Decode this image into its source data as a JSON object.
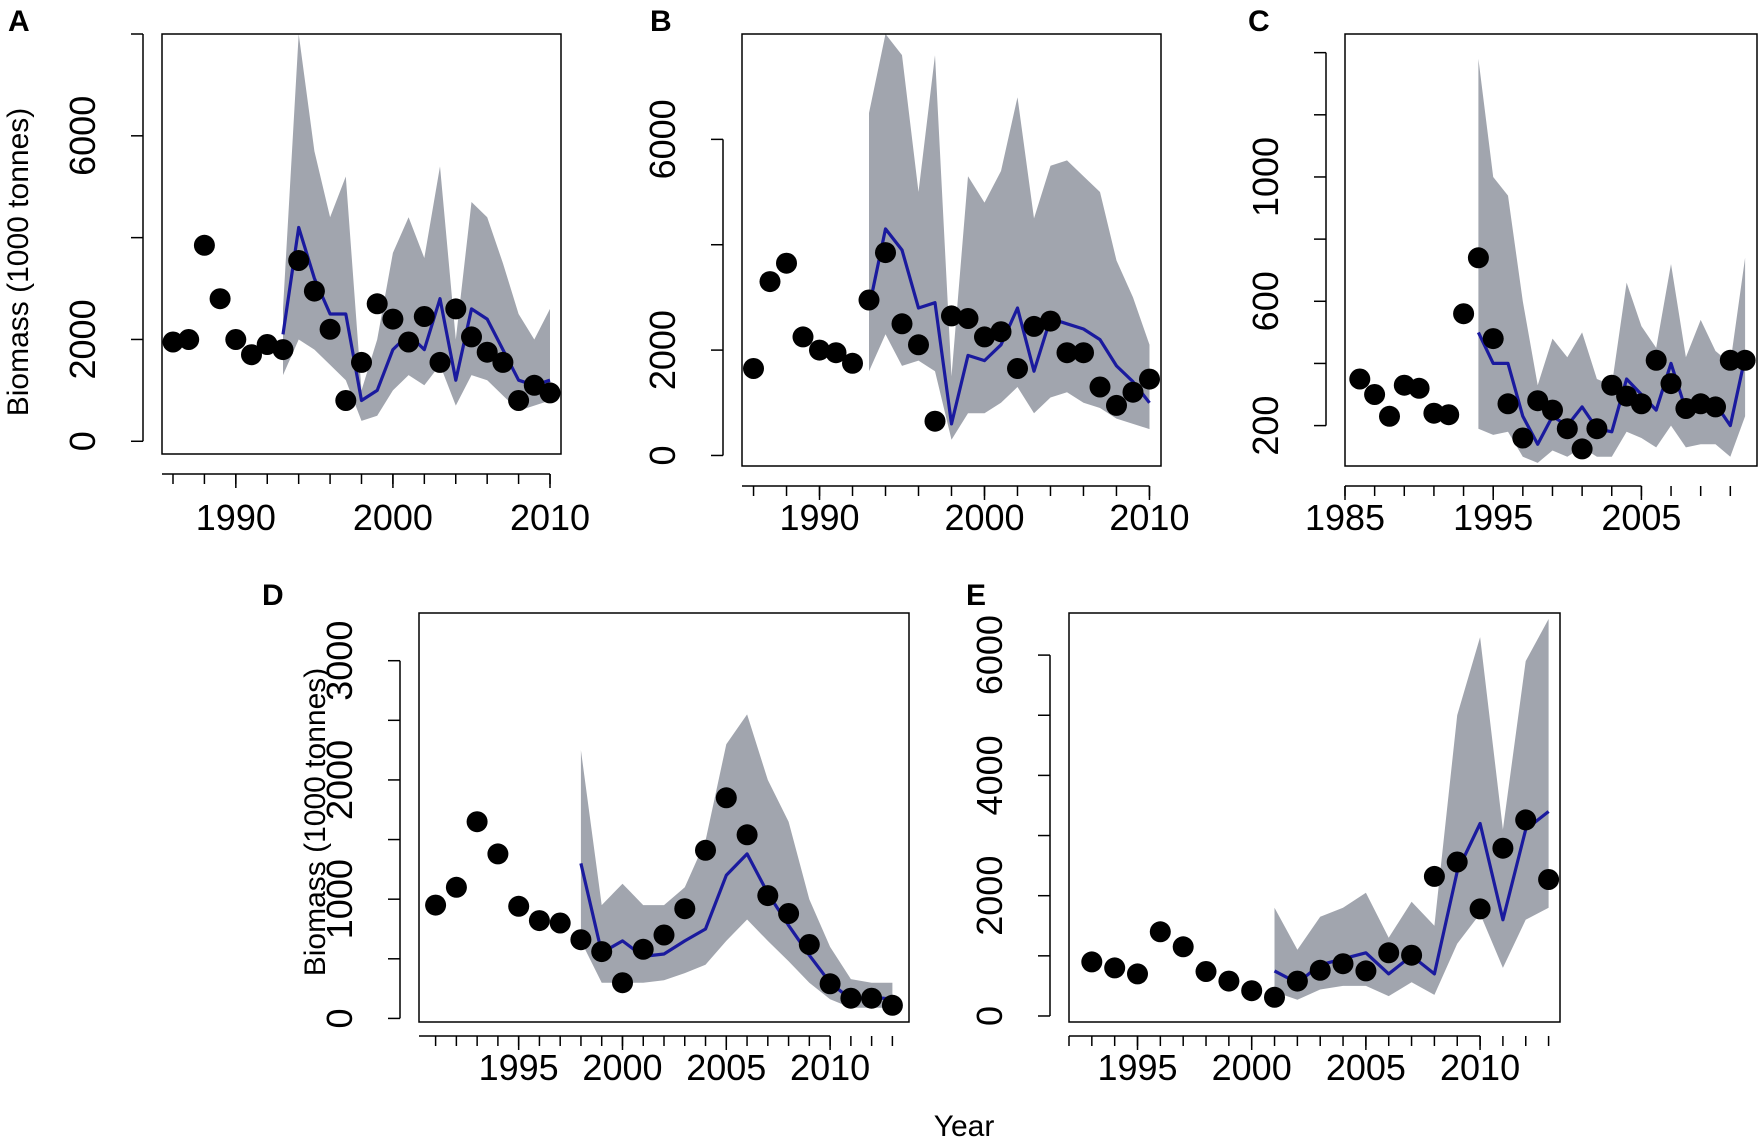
{
  "figure": {
    "xlabel": "Year",
    "colors": {
      "band": "#a1a5ae",
      "line": "#1a1a9e",
      "points": "#000000"
    }
  },
  "chart_data": [
    {
      "panel": "A",
      "type": "line",
      "ylabel": "Biomass (1000 tonnes)",
      "xlim": [
        1985.3,
        2010.7
      ],
      "ylim": [
        -250,
        8000
      ],
      "xticks": [
        1990,
        2000,
        2010
      ],
      "yticks": [
        0,
        2000,
        6000
      ],
      "ytick_minor": [
        0,
        2000,
        4000,
        6000,
        8000
      ],
      "observed": {
        "x": [
          1986,
          1987,
          1988,
          1989,
          1990,
          1991,
          1992,
          1993,
          1994,
          1995,
          1996,
          1997,
          1998,
          1999,
          2000,
          2001,
          2002,
          2003,
          2004,
          2005,
          2006,
          2007,
          2008,
          2009,
          2010
        ],
        "y": [
          1950,
          2000,
          3850,
          2800,
          2000,
          1700,
          1900,
          1800,
          3550,
          2950,
          2200,
          800,
          1550,
          2700,
          2400,
          1950,
          2450,
          1550,
          2600,
          2050,
          1750,
          1550,
          800,
          1100,
          950
        ]
      },
      "fit": {
        "x": [
          1993,
          1994,
          1995,
          1996,
          1997,
          1998,
          1999,
          2000,
          2001,
          2002,
          2003,
          2004,
          2005,
          2006,
          2007,
          2008,
          2009,
          2010
        ],
        "y": [
          2100,
          4200,
          3200,
          2500,
          2500,
          800,
          1000,
          1800,
          2100,
          1800,
          2800,
          1200,
          2600,
          2400,
          1800,
          1200,
          1100,
          1200
        ]
      },
      "band": {
        "x": [
          1993,
          1994,
          1995,
          1996,
          1997,
          1998,
          1999,
          2000,
          2001,
          2002,
          2003,
          2004,
          2005,
          2006,
          2007,
          2008,
          2009,
          2010
        ],
        "lower": [
          1300,
          2000,
          1800,
          1500,
          1200,
          400,
          500,
          1000,
          1300,
          1100,
          1500,
          700,
          1300,
          1200,
          900,
          600,
          700,
          800
        ],
        "upper": [
          2600,
          8000,
          5700,
          4400,
          5200,
          1000,
          2000,
          3700,
          4400,
          3600,
          5400,
          2000,
          4700,
          4400,
          3500,
          2500,
          2000,
          2600
        ]
      }
    },
    {
      "panel": "B",
      "type": "line",
      "ylabel": "",
      "xlim": [
        1985.3,
        2010.7
      ],
      "ylim": [
        -200,
        8000
      ],
      "xticks": [
        1990,
        2000,
        2010
      ],
      "yticks": [
        0,
        2000,
        6000
      ],
      "ytick_minor": [
        0,
        2000,
        4000,
        6000
      ],
      "observed": {
        "x": [
          1986,
          1987,
          1988,
          1989,
          1990,
          1991,
          1992,
          1993,
          1994,
          1995,
          1996,
          1997,
          1998,
          1999,
          2000,
          2001,
          2002,
          2003,
          2004,
          2005,
          2006,
          2007,
          2008,
          2009,
          2010
        ],
        "y": [
          1650,
          3300,
          3650,
          2250,
          2000,
          1950,
          1750,
          2950,
          3850,
          2500,
          2100,
          650,
          2650,
          2600,
          2250,
          2350,
          1650,
          2450,
          2550,
          1950,
          1950,
          1300,
          950,
          1200,
          1450
        ]
      },
      "fit": {
        "x": [
          1993,
          1994,
          1995,
          1996,
          1997,
          1998,
          1999,
          2000,
          2001,
          2002,
          2003,
          2004,
          2005,
          2006,
          2007,
          2008,
          2009,
          2010
        ],
        "y": [
          2800,
          4300,
          3900,
          2800,
          2900,
          600,
          1900,
          1800,
          2100,
          2800,
          1600,
          2600,
          2500,
          2400,
          2200,
          1700,
          1400,
          1000
        ]
      },
      "band": {
        "x": [
          1993,
          1994,
          1995,
          1996,
          1997,
          1998,
          1999,
          2000,
          2001,
          2002,
          2003,
          2004,
          2005,
          2006,
          2007,
          2008,
          2009,
          2010
        ],
        "lower": [
          1600,
          2300,
          1700,
          1800,
          1600,
          300,
          800,
          800,
          1000,
          1300,
          800,
          1100,
          1200,
          1000,
          900,
          700,
          600,
          500
        ],
        "upper": [
          6500,
          8000,
          7600,
          5000,
          7600,
          1500,
          5300,
          4800,
          5400,
          6800,
          4500,
          5500,
          5600,
          5300,
          5000,
          3700,
          3000,
          2100
        ]
      }
    },
    {
      "panel": "C",
      "type": "line",
      "ylabel": "",
      "xlim": [
        1985,
        2012.8
      ],
      "ylim": [
        70,
        1460
      ],
      "xticks": [
        1985,
        1995,
        2005
      ],
      "yticks": [
        200,
        600,
        1000
      ],
      "ytick_minor": [
        200,
        400,
        600,
        800,
        1000,
        1200,
        1400
      ],
      "observed": {
        "x": [
          1986,
          1987,
          1988,
          1989,
          1990,
          1991,
          1992,
          1993,
          1994,
          1995,
          1996,
          1997,
          1998,
          1999,
          2000,
          2001,
          2002,
          2003,
          2004,
          2005,
          2006,
          2007,
          2008,
          2009,
          2010,
          2011,
          2012
        ],
        "y": [
          350,
          300,
          230,
          330,
          320,
          240,
          235,
          560,
          740,
          480,
          270,
          160,
          280,
          250,
          190,
          125,
          190,
          330,
          295,
          270,
          410,
          335,
          255,
          270,
          260,
          410,
          410
        ]
      },
      "fit": {
        "x": [
          1994,
          1995,
          1996,
          1997,
          1998,
          1999,
          2000,
          2001,
          2002,
          2003,
          2004,
          2005,
          2006,
          2007,
          2008,
          2009,
          2010,
          2011,
          2012
        ],
        "y": [
          500,
          400,
          400,
          230,
          140,
          230,
          200,
          260,
          190,
          180,
          350,
          300,
          250,
          400,
          250,
          270,
          270,
          200,
          420
        ]
      },
      "band": {
        "x": [
          1994,
          1995,
          1996,
          1997,
          1998,
          1999,
          2000,
          2001,
          2002,
          2003,
          2004,
          2005,
          2006,
          2007,
          2008,
          2009,
          2010,
          2011,
          2012
        ],
        "lower": [
          190,
          170,
          180,
          100,
          80,
          120,
          100,
          130,
          100,
          100,
          180,
          160,
          130,
          200,
          130,
          140,
          140,
          100,
          230
        ],
        "upper": [
          1380,
          1000,
          940,
          600,
          330,
          480,
          420,
          500,
          350,
          330,
          660,
          520,
          450,
          720,
          420,
          540,
          440,
          400,
          740
        ]
      }
    },
    {
      "panel": "D",
      "type": "line",
      "ylabel": "Biomass (1000 tonnes)",
      "xlim": [
        1990.2,
        2013.8
      ],
      "ylim": [
        -30,
        3400
      ],
      "xticks": [
        1995,
        2000,
        2005,
        2010
      ],
      "yticks": [
        0,
        1000,
        2000,
        3000
      ],
      "ytick_minor": [
        0,
        500,
        1000,
        1500,
        2000,
        2500,
        3000
      ],
      "observed": {
        "x": [
          1991,
          1992,
          1993,
          1994,
          1995,
          1996,
          1997,
          1998,
          1999,
          2000,
          2001,
          2002,
          2003,
          2004,
          2005,
          2006,
          2007,
          2008,
          2009,
          2010,
          2011,
          2012,
          2013
        ],
        "y": [
          950,
          1100,
          1650,
          1380,
          940,
          820,
          800,
          660,
          560,
          300,
          580,
          700,
          920,
          1410,
          1850,
          1540,
          1030,
          880,
          620,
          290,
          170,
          170,
          110
        ]
      },
      "fit": {
        "x": [
          1998,
          1999,
          2000,
          2001,
          2002,
          2003,
          2004,
          2005,
          2006,
          2007,
          2008,
          2009,
          2010,
          2011,
          2012,
          2013
        ],
        "y": [
          1300,
          550,
          650,
          520,
          540,
          650,
          750,
          1200,
          1380,
          1050,
          780,
          530,
          300,
          160,
          180,
          160
        ]
      },
      "band": {
        "x": [
          1998,
          1999,
          2000,
          2001,
          2002,
          2003,
          2004,
          2005,
          2006,
          2007,
          2008,
          2009,
          2010,
          2011,
          2012,
          2013
        ],
        "lower": [
          650,
          300,
          300,
          300,
          320,
          380,
          450,
          650,
          830,
          650,
          480,
          300,
          160,
          90,
          90,
          90
        ],
        "upper": [
          2250,
          950,
          1130,
          950,
          950,
          1100,
          1490,
          2300,
          2550,
          2000,
          1650,
          1000,
          600,
          330,
          300,
          300
        ]
      }
    },
    {
      "panel": "E",
      "type": "line",
      "ylabel": "",
      "xlim": [
        1992,
        2013.5
      ],
      "ylim": [
        -100,
        6700
      ],
      "xticks": [
        1995,
        2000,
        2005,
        2010
      ],
      "yticks": [
        0,
        2000,
        4000,
        6000
      ],
      "ytick_minor": [
        0,
        1000,
        2000,
        3000,
        4000,
        5000,
        6000
      ],
      "observed": {
        "x": [
          1993,
          1994,
          1995,
          1996,
          1997,
          1998,
          1999,
          2000,
          2001,
          2002,
          2003,
          2004,
          2005,
          2006,
          2007,
          2008,
          2009,
          2010,
          2011,
          2012,
          2013
        ],
        "y": [
          900,
          800,
          700,
          1400,
          1150,
          740,
          580,
          420,
          310,
          580,
          760,
          870,
          750,
          1050,
          1010,
          2320,
          2560,
          1780,
          2790,
          3260,
          2270
        ]
      },
      "fit": {
        "x": [
          2001,
          2002,
          2003,
          2004,
          2005,
          2006,
          2007,
          2008,
          2009,
          2010,
          2011,
          2012,
          2013
        ],
        "y": [
          750,
          550,
          850,
          950,
          1050,
          700,
          1000,
          700,
          2400,
          3200,
          1600,
          3100,
          3400
        ]
      },
      "band": {
        "x": [
          2001,
          2002,
          2003,
          2004,
          2005,
          2006,
          2007,
          2008,
          2009,
          2010,
          2011,
          2012,
          2013
        ],
        "lower": [
          400,
          270,
          440,
          500,
          500,
          330,
          560,
          350,
          1200,
          1700,
          800,
          1600,
          1800
        ],
        "upper": [
          1800,
          1100,
          1650,
          1800,
          2050,
          1300,
          1900,
          1500,
          5000,
          6300,
          3100,
          5900,
          6600
        ]
      }
    }
  ]
}
